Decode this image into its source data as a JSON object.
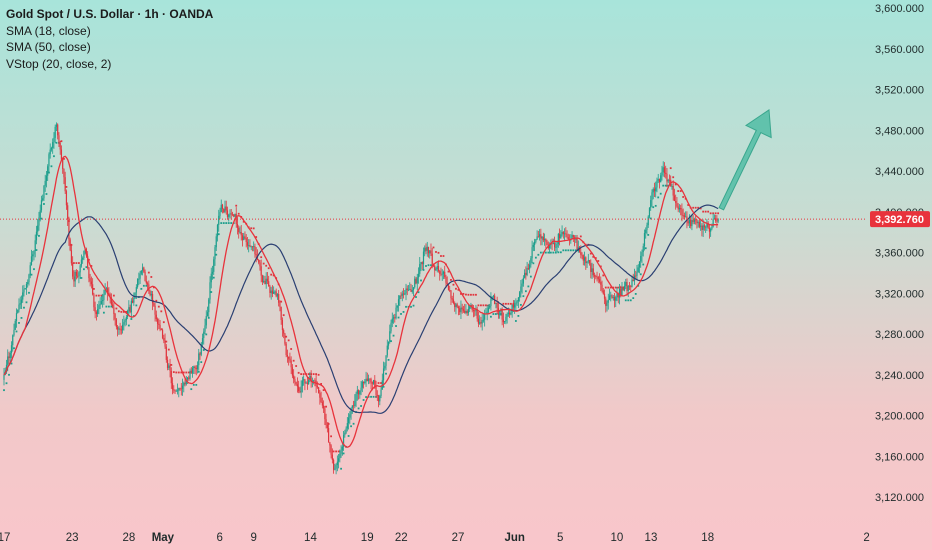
{
  "legend": {
    "title": "Gold Spot / U.S. Dollar · 1h · OANDA",
    "indicators": [
      "SMA (18, close)",
      "SMA (50, close)",
      "VStop (20, close, 2)"
    ]
  },
  "colors": {
    "up": "#1b9e8c",
    "down": "#e0343d",
    "sma18": "#e8333c",
    "sma50": "#2a3f72",
    "vstop_up": "#1b9e8c",
    "vstop_down": "#e0343d",
    "arrow": "#58bfa7",
    "price_label": "#e8333c"
  },
  "chart_data": {
    "type": "candlestick",
    "title": "Gold Spot / U.S. Dollar · 1h · OANDA",
    "y_ticks": [
      "3,600.000",
      "3,560.000",
      "3,520.000",
      "3,480.000",
      "3,440.000",
      "3,400.000",
      "3,360.000",
      "3,320.000",
      "3,280.000",
      "3,240.000",
      "3,200.000",
      "3,160.000",
      "3,120.000"
    ],
    "ylim": [
      3108,
      3606
    ],
    "x_labels": [
      {
        "label": "17",
        "day": 0,
        "bold": false
      },
      {
        "label": "23",
        "day": 6,
        "bold": false
      },
      {
        "label": "28",
        "day": 11,
        "bold": false
      },
      {
        "label": "May",
        "day": 14,
        "bold": true
      },
      {
        "label": "6",
        "day": 19,
        "bold": false
      },
      {
        "label": "9",
        "day": 22,
        "bold": false
      },
      {
        "label": "14",
        "day": 27,
        "bold": false
      },
      {
        "label": "19",
        "day": 32,
        "bold": false
      },
      {
        "label": "22",
        "day": 35,
        "bold": false
      },
      {
        "label": "27",
        "day": 40,
        "bold": false
      },
      {
        "label": "Jun",
        "day": 45,
        "bold": true
      },
      {
        "label": "5",
        "day": 49,
        "bold": false
      },
      {
        "label": "10",
        "day": 54,
        "bold": false
      },
      {
        "label": "13",
        "day": 57,
        "bold": false
      },
      {
        "label": "18",
        "day": 62,
        "bold": false
      },
      {
        "label": "2",
        "day": 76,
        "bold": false
      }
    ],
    "current_price": 3392.76,
    "current_price_label": "3,392.760",
    "price_path": [
      [
        0,
        3235
      ],
      [
        1,
        3300
      ],
      [
        2,
        3335
      ],
      [
        3,
        3395
      ],
      [
        4,
        3465
      ],
      [
        4.6,
        3488
      ],
      [
        5.2,
        3430
      ],
      [
        6,
        3330
      ],
      [
        7,
        3365
      ],
      [
        8,
        3300
      ],
      [
        9,
        3325
      ],
      [
        10,
        3280
      ],
      [
        11,
        3305
      ],
      [
        12,
        3345
      ],
      [
        13,
        3310
      ],
      [
        14,
        3270
      ],
      [
        15,
        3215
      ],
      [
        16,
        3238
      ],
      [
        17,
        3250
      ],
      [
        18,
        3320
      ],
      [
        19,
        3410
      ],
      [
        20,
        3395
      ],
      [
        21,
        3375
      ],
      [
        22,
        3355
      ],
      [
        23,
        3330
      ],
      [
        24,
        3315
      ],
      [
        25,
        3250
      ],
      [
        26,
        3230
      ],
      [
        27,
        3238
      ],
      [
        28,
        3210
      ],
      [
        29,
        3140
      ],
      [
        30,
        3185
      ],
      [
        31,
        3220
      ],
      [
        32,
        3240
      ],
      [
        33,
        3215
      ],
      [
        34,
        3290
      ],
      [
        35,
        3320
      ],
      [
        36,
        3325
      ],
      [
        37,
        3365
      ],
      [
        38,
        3345
      ],
      [
        39,
        3330
      ],
      [
        40,
        3300
      ],
      [
        41,
        3310
      ],
      [
        42,
        3290
      ],
      [
        43,
        3315
      ],
      [
        44,
        3290
      ],
      [
        45,
        3310
      ],
      [
        46,
        3345
      ],
      [
        47,
        3380
      ],
      [
        48,
        3360
      ],
      [
        49,
        3380
      ],
      [
        50,
        3375
      ],
      [
        51,
        3355
      ],
      [
        52,
        3340
      ],
      [
        53,
        3310
      ],
      [
        54,
        3320
      ],
      [
        55,
        3325
      ],
      [
        56,
        3355
      ],
      [
        57,
        3420
      ],
      [
        58,
        3440
      ],
      [
        59,
        3410
      ],
      [
        60,
        3395
      ],
      [
        61,
        3390
      ],
      [
        62,
        3385
      ],
      [
        63,
        3392.76
      ]
    ],
    "arrow": {
      "from": [
        63.2,
        3403
      ],
      "to": [
        67.4,
        3500
      ]
    }
  }
}
